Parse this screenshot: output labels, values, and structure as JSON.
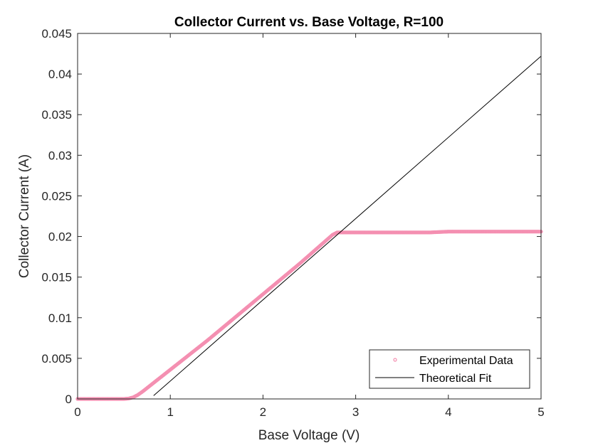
{
  "chart_data": {
    "type": "scatter",
    "title": "Collector Current vs. Base Voltage, R=100",
    "xlabel": "Base Voltage (V)",
    "ylabel": "Collector Current (A)",
    "xlim": [
      0,
      5
    ],
    "ylim": [
      0,
      0.045
    ],
    "xticks": [
      "0",
      "1",
      "2",
      "3",
      "4",
      "5"
    ],
    "yticks": [
      "0",
      "0.005",
      "0.01",
      "0.015",
      "0.02",
      "0.025",
      "0.03",
      "0.035",
      "0.04",
      "0.045"
    ],
    "grid": false,
    "legend_position": "bottom-right",
    "series": [
      {
        "name": "Experimental Data",
        "type": "scatter",
        "marker": "circle",
        "color": "#f48fb1",
        "x": [
          0,
          0.1,
          0.2,
          0.3,
          0.4,
          0.5,
          0.55,
          0.6,
          0.65,
          0.7,
          0.8,
          0.9,
          1.0,
          1.2,
          1.4,
          1.6,
          1.8,
          2.0,
          2.2,
          2.4,
          2.6,
          2.75,
          2.8,
          3.0,
          3.2,
          3.4,
          3.6,
          3.8,
          4.0,
          4.2,
          4.4,
          4.6,
          4.8,
          5.0
        ],
        "y": [
          0,
          0,
          0,
          0,
          0,
          0,
          5e-05,
          0.0002,
          0.0005,
          0.0009,
          0.0018,
          0.0027,
          0.0036,
          0.0054,
          0.0072,
          0.0091,
          0.011,
          0.0129,
          0.0148,
          0.0167,
          0.0187,
          0.0202,
          0.0205,
          0.0205,
          0.0205,
          0.0205,
          0.0205,
          0.0205,
          0.0206,
          0.0206,
          0.0206,
          0.0206,
          0.0206,
          0.0206
        ]
      },
      {
        "name": "Theoretical Fit",
        "type": "line",
        "color": "#000000",
        "x": [
          0.82,
          5.0
        ],
        "y": [
          0.0004,
          0.0422
        ]
      }
    ]
  }
}
